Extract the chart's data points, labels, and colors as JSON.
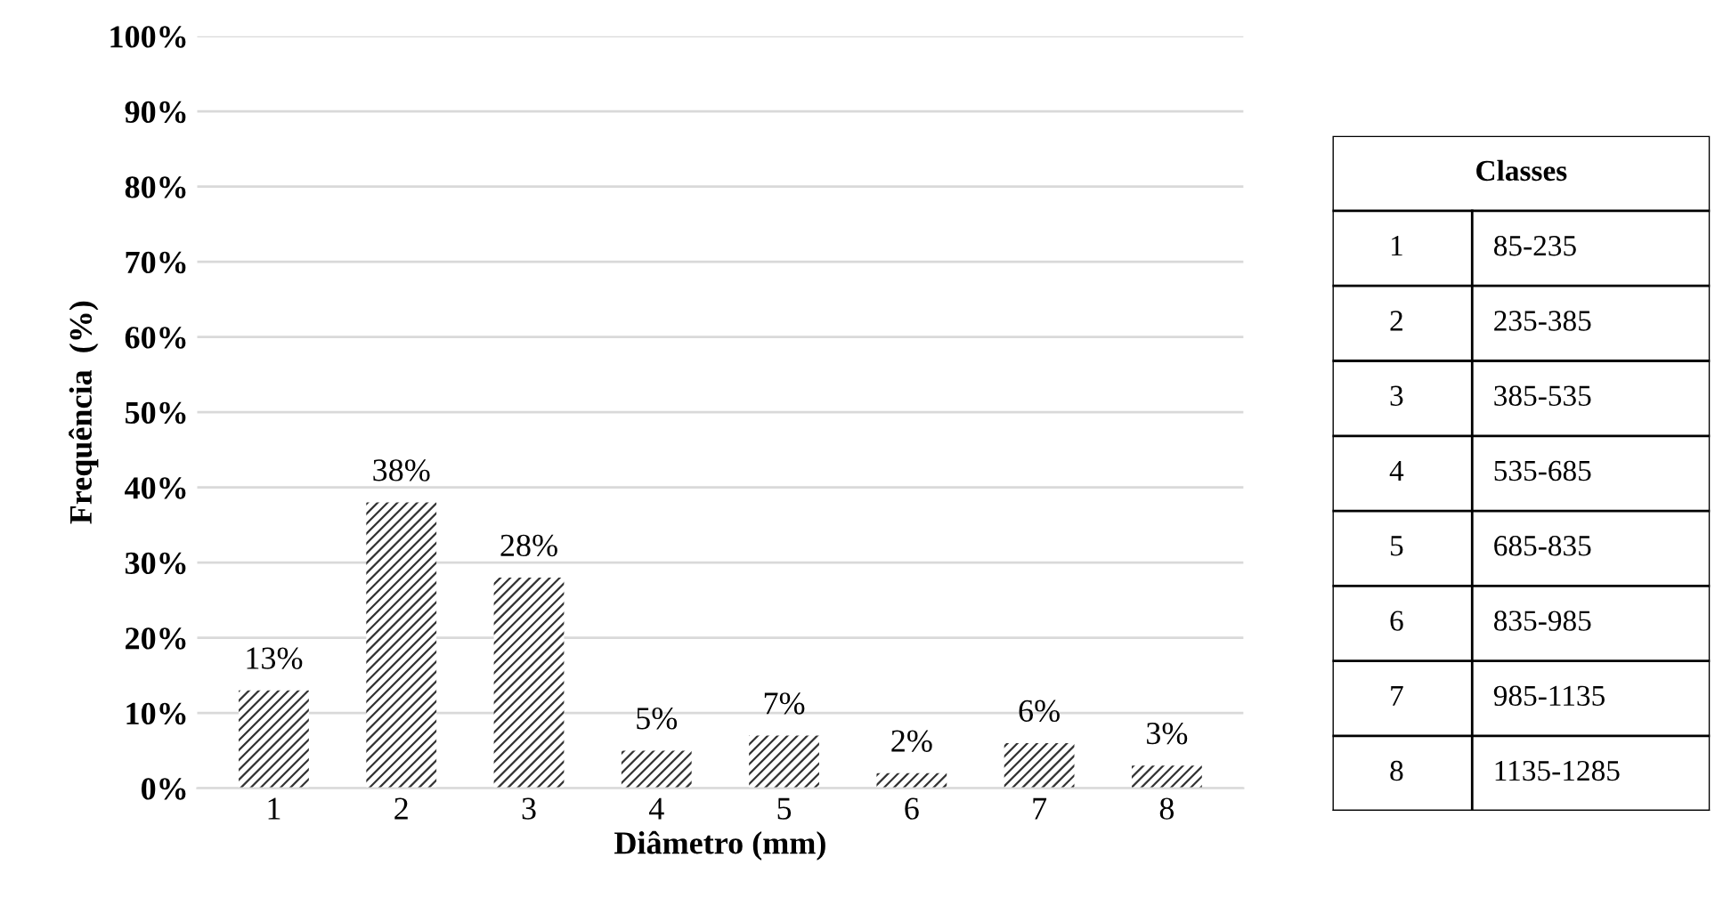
{
  "chart_data": [
    {
      "type": "bar",
      "xlabel": "Diâmetro (mm)",
      "ylabel": "Frequência  (%)",
      "categories": [
        "1",
        "2",
        "3",
        "4",
        "5",
        "6",
        "7",
        "8"
      ],
      "values": [
        13,
        38,
        28,
        5,
        7,
        2,
        6,
        3
      ],
      "value_labels": [
        "13%",
        "38%",
        "28%",
        "5%",
        "7%",
        "2%",
        "6%",
        "3%"
      ],
      "color": "#333333",
      "ylim": [
        0,
        100
      ],
      "yticks": [
        {
          "value": 0,
          "label": "0%"
        },
        {
          "value": 10,
          "label": "10%"
        },
        {
          "value": 20,
          "label": "20%"
        },
        {
          "value": 30,
          "label": "30%"
        },
        {
          "value": 40,
          "label": "40%"
        },
        {
          "value": 50,
          "label": "50%"
        },
        {
          "value": 60,
          "label": "60%"
        },
        {
          "value": 70,
          "label": "70%"
        },
        {
          "value": 80,
          "label": "80%"
        },
        {
          "value": 90,
          "label": "90%"
        },
        {
          "value": 100,
          "label": "100%"
        }
      ],
      "grid": "y"
    },
    {
      "type": "other",
      "title": "Classes",
      "annotations": [
        "1",
        "85-235",
        "2",
        "235-385",
        "3",
        "385-535",
        "4",
        "535-685",
        "5",
        "685-835",
        "6",
        "835-985",
        "7",
        "985-1135",
        "8",
        "1135-1285"
      ]
    }
  ]
}
